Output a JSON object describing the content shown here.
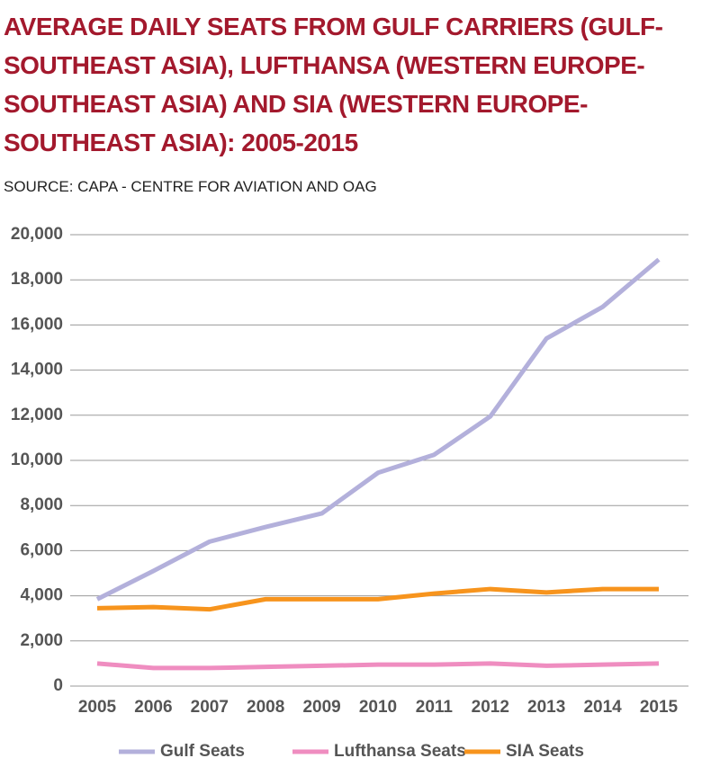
{
  "chart_data": {
    "type": "line",
    "title": "AVERAGE DAILY SEATS FROM GULF CARRIERS (GULF-SOUTHEAST ASIA), LUFTHANSA (WESTERN EUROPE-SOUTHEAST ASIA) AND SIA (WESTERN EUROPE-SOUTHEAST ASIA): 2005-2015",
    "subtitle": "SOURCE: CAPA - CENTRE FOR AVIATION AND OAG",
    "categories": [
      "2005",
      "2006",
      "2007",
      "2008",
      "2009",
      "2010",
      "2011",
      "2012",
      "2013",
      "2014",
      "2015"
    ],
    "series": [
      {
        "name": "Gulf Seats",
        "color": "#b3b0db",
        "values": [
          3850,
          5100,
          6400,
          7050,
          7650,
          9450,
          10250,
          11950,
          15400,
          16800,
          18900
        ]
      },
      {
        "name": "Lufthansa Seats",
        "color": "#ef8dc0",
        "values": [
          1000,
          800,
          800,
          850,
          900,
          950,
          950,
          1000,
          900,
          950,
          1000
        ]
      },
      {
        "name": "SIA Seats",
        "color": "#f7941d",
        "values": [
          3450,
          3500,
          3400,
          3850,
          3850,
          3850,
          4100,
          4300,
          4150,
          4300,
          4300
        ]
      }
    ],
    "ylim": [
      0,
      20000
    ],
    "yticks": [
      0,
      {
        "value": 2000,
        "label": "2,000"
      },
      {
        "value": 4000,
        "label": "4,000"
      },
      {
        "value": 6000,
        "label": "6,000"
      },
      {
        "value": 8000,
        "label": "8,000"
      },
      {
        "value": 10000,
        "label": "10,000"
      },
      {
        "value": 12000,
        "label": "12,000"
      },
      {
        "value": 14000,
        "label": "14,000"
      },
      {
        "value": 16000,
        "label": "16,000"
      },
      {
        "value": 18000,
        "label": "18,000"
      },
      {
        "value": 20000,
        "label": "20,000"
      }
    ],
    "grid": true,
    "legend": "bottom"
  }
}
